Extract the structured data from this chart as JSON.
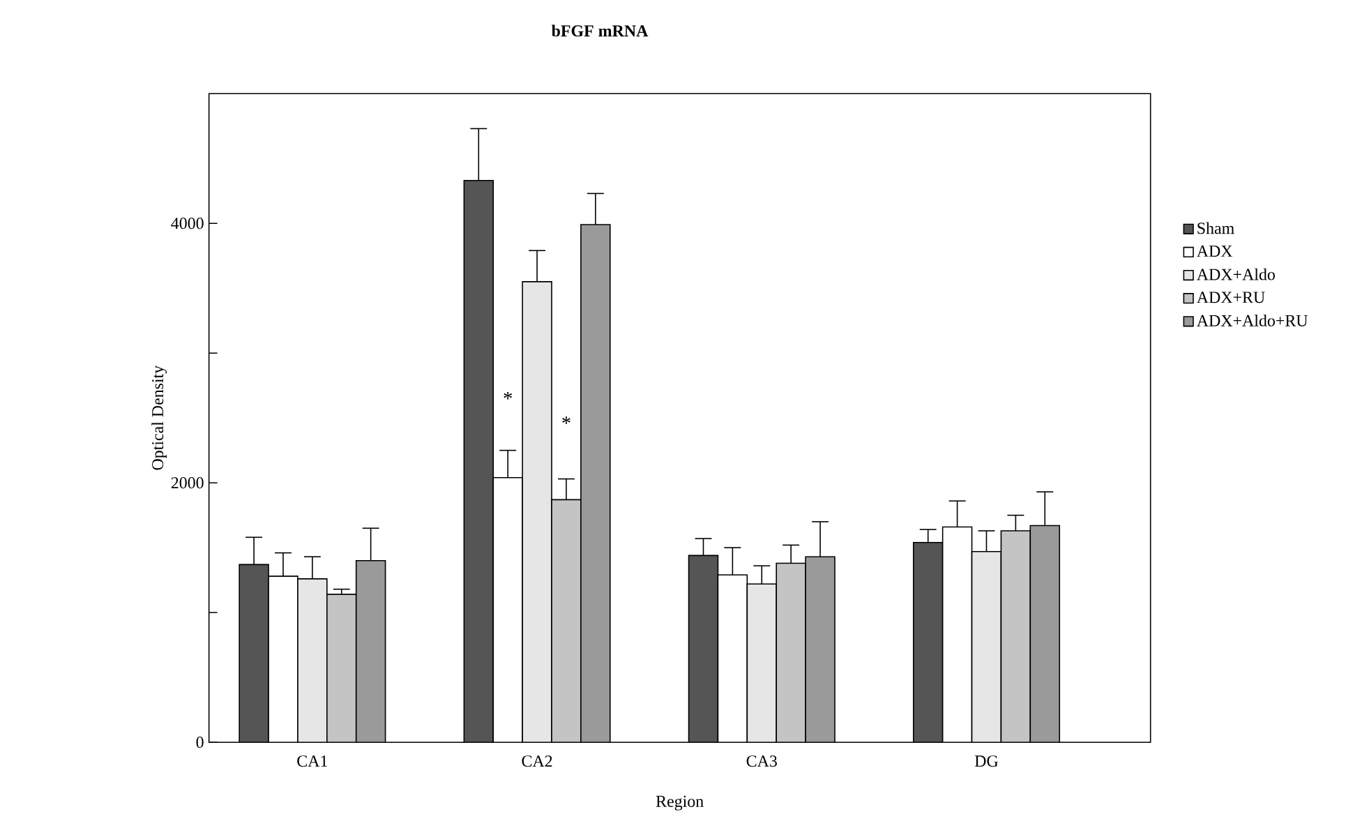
{
  "chart_data": {
    "type": "bar",
    "title": "bFGF  mRNA",
    "xlabel": "Region",
    "ylabel": "Optical Density",
    "categories": [
      "CA1",
      "CA2",
      "CA3",
      "DG"
    ],
    "series": [
      {
        "name": "Sham",
        "color": "#555555",
        "values": [
          1370,
          4330,
          1440,
          1540
        ],
        "errors": [
          210,
          400,
          130,
          100
        ]
      },
      {
        "name": "ADX",
        "color": "#ffffff",
        "values": [
          1280,
          2040,
          1290,
          1660
        ],
        "errors": [
          180,
          210,
          210,
          200
        ]
      },
      {
        "name": "ADX+Aldo",
        "color": "#e6e6e6",
        "values": [
          1260,
          3550,
          1220,
          1470
        ],
        "errors": [
          170,
          240,
          140,
          160
        ]
      },
      {
        "name": "ADX+RU",
        "color": "#c4c4c4",
        "values": [
          1140,
          1870,
          1380,
          1630
        ],
        "errors": [
          40,
          160,
          140,
          120
        ]
      },
      {
        "name": "ADX+Aldo+RU",
        "color": "#9a9a9a",
        "values": [
          1400,
          3990,
          1430,
          1670
        ],
        "errors": [
          250,
          240,
          270,
          260
        ]
      }
    ],
    "ylim": [
      0,
      5000
    ],
    "yticks": [
      0,
      {
        "value": 1000,
        "label": null
      },
      2000,
      {
        "value": 3000,
        "label": null
      },
      4000
    ],
    "annotations": [
      "*",
      "*"
    ],
    "grid": false,
    "legend": "right"
  }
}
